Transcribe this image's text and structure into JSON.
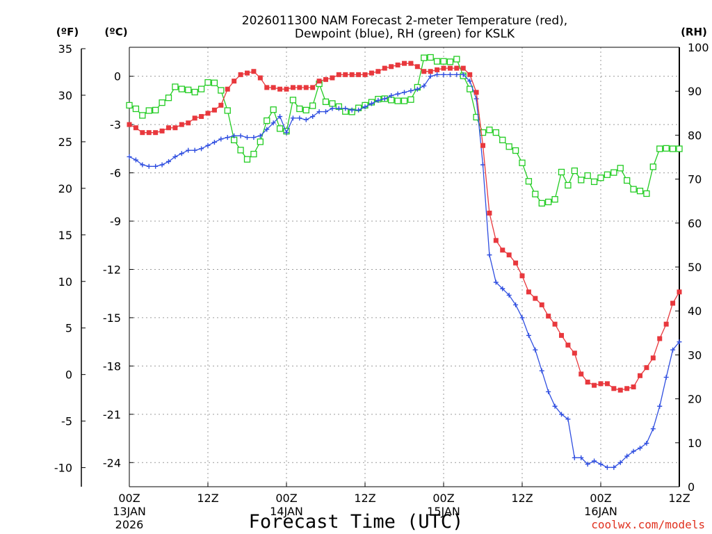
{
  "chart_data": {
    "type": "line",
    "title_line1": "2026011300 NAM Forecast 2-meter Temperature (red),",
    "title_line2": "Dewpoint (blue), RH (green) for KSLK",
    "station": "KSLK",
    "run": "2026011300",
    "unit_f": "(ºF)",
    "unit_c": "(ºC)",
    "unit_rh": "(RH)",
    "xlabel": "Forecast Time (UTC)",
    "credit": "coolwx.com/models",
    "x_range_hours": [
      0,
      84
    ],
    "c_range": [
      -25.5,
      1.8
    ],
    "rh_range": [
      0,
      100
    ],
    "f_ticks": [
      "35",
      "30",
      "25",
      "20",
      "15",
      "10",
      "5",
      "0",
      "-5",
      "-10"
    ],
    "c_ticks": [
      "0",
      "-3",
      "-6",
      "-9",
      "-12",
      "-15",
      "-18",
      "-21",
      "-24"
    ],
    "rh_ticks": [
      "100",
      "90",
      "80",
      "70",
      "60",
      "50",
      "40",
      "30",
      "20",
      "10",
      "0"
    ],
    "x_ticks": [
      {
        "hour": 0,
        "line1": "00Z",
        "line2": "13JAN",
        "line3": "2026"
      },
      {
        "hour": 12,
        "line1": "12Z",
        "line2": "",
        "line3": ""
      },
      {
        "hour": 24,
        "line1": "00Z",
        "line2": "14JAN",
        "line3": ""
      },
      {
        "hour": 36,
        "line1": "12Z",
        "line2": "",
        "line3": ""
      },
      {
        "hour": 48,
        "line1": "00Z",
        "line2": "15JAN",
        "line3": ""
      },
      {
        "hour": 60,
        "line1": "12Z",
        "line2": "",
        "line3": ""
      },
      {
        "hour": 72,
        "line1": "00Z",
        "line2": "16JAN",
        "line3": ""
      },
      {
        "hour": 84,
        "line1": "12Z",
        "line2": "",
        "line3": ""
      }
    ],
    "series": [
      {
        "name": "Temperature",
        "color": "#e8383d",
        "marker": "square-filled",
        "axis": "celsius",
        "x": [
          0,
          1,
          2,
          3,
          4,
          5,
          6,
          7,
          8,
          9,
          10,
          11,
          12,
          13,
          14,
          15,
          16,
          17,
          18,
          19,
          20,
          21,
          22,
          23,
          24,
          25,
          26,
          27,
          28,
          29,
          30,
          31,
          32,
          33,
          34,
          35,
          36,
          37,
          38,
          39,
          40,
          41,
          42,
          43,
          44,
          45,
          46,
          47,
          48,
          49,
          50,
          51,
          52,
          53,
          54,
          55,
          56,
          57,
          58,
          59,
          60,
          61,
          62,
          63,
          64,
          65,
          66,
          67,
          68,
          69,
          70,
          71,
          72,
          73,
          74,
          75,
          76,
          77,
          78,
          79,
          80,
          81,
          82,
          83,
          84
        ],
        "values": [
          -3.0,
          -3.2,
          -3.5,
          -3.5,
          -3.5,
          -3.4,
          -3.2,
          -3.2,
          -3.0,
          -2.9,
          -2.6,
          -2.5,
          -2.3,
          -2.1,
          -1.8,
          -0.8,
          -0.3,
          0.1,
          0.2,
          0.3,
          -0.1,
          -0.7,
          -0.7,
          -0.8,
          -0.8,
          -0.7,
          -0.7,
          -0.7,
          -0.7,
          -0.3,
          -0.2,
          -0.1,
          0.1,
          0.1,
          0.1,
          0.1,
          0.1,
          0.2,
          0.3,
          0.5,
          0.6,
          0.7,
          0.8,
          0.8,
          0.6,
          0.3,
          0.3,
          0.4,
          0.5,
          0.5,
          0.5,
          0.5,
          0.1,
          -1.0,
          -4.3,
          -8.5,
          -10.2,
          -10.8,
          -11.1,
          -11.6,
          -12.4,
          -13.4,
          -13.8,
          -14.2,
          -14.9,
          -15.4,
          -16.1,
          -16.7,
          -17.2,
          -18.5,
          -19.0,
          -19.2,
          -19.1,
          -19.1,
          -19.4,
          -19.5,
          -19.4,
          -19.3,
          -18.6,
          -18.1,
          -17.5,
          -16.3,
          -15.4,
          -14.1,
          -13.4
        ]
      },
      {
        "name": "Dewpoint",
        "color": "#2f4ee0",
        "marker": "plus",
        "axis": "celsius",
        "x": [
          0,
          1,
          2,
          3,
          4,
          5,
          6,
          7,
          8,
          9,
          10,
          11,
          12,
          13,
          14,
          15,
          16,
          17,
          18,
          19,
          20,
          21,
          22,
          23,
          24,
          25,
          26,
          27,
          28,
          29,
          30,
          31,
          32,
          33,
          34,
          35,
          36,
          37,
          38,
          39,
          40,
          41,
          42,
          43,
          44,
          45,
          46,
          47,
          48,
          49,
          50,
          51,
          52,
          53,
          54,
          55,
          56,
          57,
          58,
          59,
          60,
          61,
          62,
          63,
          64,
          65,
          66,
          67,
          68,
          69,
          70,
          71,
          72,
          73,
          74,
          75,
          76,
          77,
          78,
          79,
          80,
          81,
          82,
          83,
          84
        ],
        "values": [
          -5.0,
          -5.2,
          -5.5,
          -5.6,
          -5.6,
          -5.5,
          -5.3,
          -5.0,
          -4.8,
          -4.6,
          -4.6,
          -4.5,
          -4.3,
          -4.1,
          -3.9,
          -3.8,
          -3.7,
          -3.7,
          -3.8,
          -3.8,
          -3.7,
          -3.3,
          -2.9,
          -2.5,
          -3.5,
          -2.6,
          -2.6,
          -2.7,
          -2.5,
          -2.2,
          -2.2,
          -2.0,
          -2.0,
          -2.0,
          -2.1,
          -2.1,
          -1.9,
          -1.7,
          -1.5,
          -1.4,
          -1.2,
          -1.1,
          -1.0,
          -0.9,
          -0.8,
          -0.6,
          0.0,
          0.1,
          0.1,
          0.1,
          0.1,
          0.1,
          -0.3,
          -1.4,
          -5.5,
          -11.1,
          -12.8,
          -13.2,
          -13.6,
          -14.2,
          -15.0,
          -16.1,
          -17.0,
          -18.3,
          -19.6,
          -20.5,
          -21.0,
          -21.3,
          -23.7,
          -23.7,
          -24.1,
          -23.9,
          -24.1,
          -24.3,
          -24.3,
          -24.0,
          -23.6,
          -23.3,
          -23.1,
          -22.8,
          -21.9,
          -20.5,
          -18.7,
          -17.0,
          -16.5
        ]
      },
      {
        "name": "RH",
        "color": "#22cc22",
        "marker": "square-open",
        "axis": "rh",
        "x": [
          0,
          1,
          2,
          3,
          4,
          5,
          6,
          7,
          8,
          9,
          10,
          11,
          12,
          13,
          14,
          15,
          16,
          17,
          18,
          19,
          20,
          21,
          22,
          23,
          24,
          25,
          26,
          27,
          28,
          29,
          30,
          31,
          32,
          33,
          34,
          35,
          36,
          37,
          38,
          39,
          40,
          41,
          42,
          43,
          44,
          45,
          46,
          47,
          48,
          49,
          50,
          51,
          52,
          53,
          54,
          55,
          56,
          57,
          58,
          59,
          60,
          61,
          62,
          63,
          64,
          65,
          66,
          67,
          68,
          69,
          70,
          71,
          72,
          73,
          74,
          75,
          76,
          77,
          78,
          79,
          80,
          81,
          82,
          83,
          84
        ],
        "values": [
          86.8,
          86.0,
          84.5,
          85.6,
          85.7,
          87.4,
          88.5,
          91.0,
          90.5,
          90.3,
          89.8,
          90.5,
          92.0,
          91.9,
          90.2,
          85.6,
          78.9,
          76.6,
          74.5,
          75.7,
          78.5,
          83.3,
          85.8,
          81.5,
          80.9,
          88.0,
          86.0,
          85.7,
          86.7,
          91.7,
          87.6,
          87.2,
          86.5,
          85.4,
          85.3,
          86.2,
          86.8,
          87.5,
          88.2,
          88.3,
          88.0,
          87.8,
          87.8,
          88.1,
          90.9,
          97.6,
          97.7,
          96.8,
          96.8,
          96.7,
          97.3,
          93.5,
          90.5,
          84.1,
          80.6,
          81.2,
          80.6,
          78.9,
          77.4,
          76.5,
          73.7,
          69.5,
          66.6,
          64.5,
          64.8,
          65.4,
          71.6,
          68.6,
          71.9,
          69.8,
          70.8,
          69.4,
          70.3,
          71.0,
          71.5,
          72.5,
          69.7,
          67.7,
          67.3,
          66.7,
          72.8,
          76.9,
          77.0,
          76.9,
          76.9
        ]
      }
    ]
  }
}
